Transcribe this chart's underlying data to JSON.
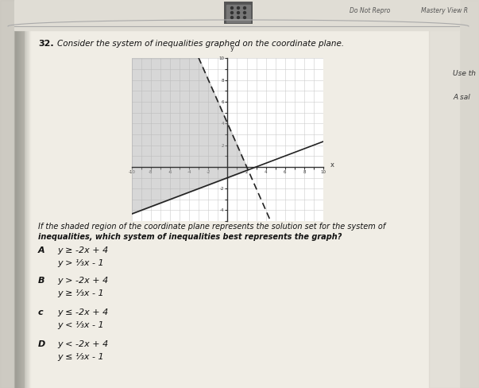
{
  "title_number": "32.",
  "title_text": "Consider the system of inequalities graphed on the coordinate plane.",
  "graph_xlim": [
    -10,
    10
  ],
  "graph_ylim": [
    -5,
    10
  ],
  "line1_slope": -2,
  "line1_intercept": 4,
  "line1_color": "#222222",
  "line2_slope": 0.3333,
  "line2_intercept": -1,
  "line2_color": "#222222",
  "shade_color": "#b0b0b0",
  "shade_alpha": 0.5,
  "question_text1": "If the shaded region of the coordinate plane represents the solution set for the system of",
  "question_text2": "inequalities, which system of inequalities best represents the graph?",
  "option_A_label": "A",
  "option_A_line1": "y ≥ -2x + 4",
  "option_A_line2": "y > ¹⁄₃x - 1",
  "option_B_label": "B",
  "option_B_line1": "y > -2x + 4",
  "option_B_line2": "y ≥ ¹⁄₃x - 1",
  "option_C_label": "c",
  "option_C_line1": "y ≤ -2x + 4",
  "option_C_line2": "y < ¹⁄₃x - 1",
  "option_D_label": "D",
  "option_D_line1": "y < -2x + 4",
  "option_D_line2": "y ≤ ¹⁄₃x - 1",
  "bg_color": "#dcdad2",
  "page_color": "#e8e6de",
  "header_bar_color": "#c8c6be",
  "grid_color": "#cccccc",
  "tick_color": "#333333",
  "header_left": "Do Not Repro",
  "header_right": "Mastery View R",
  "right_margin_text1": "Use th",
  "right_margin_text2": "A sal"
}
